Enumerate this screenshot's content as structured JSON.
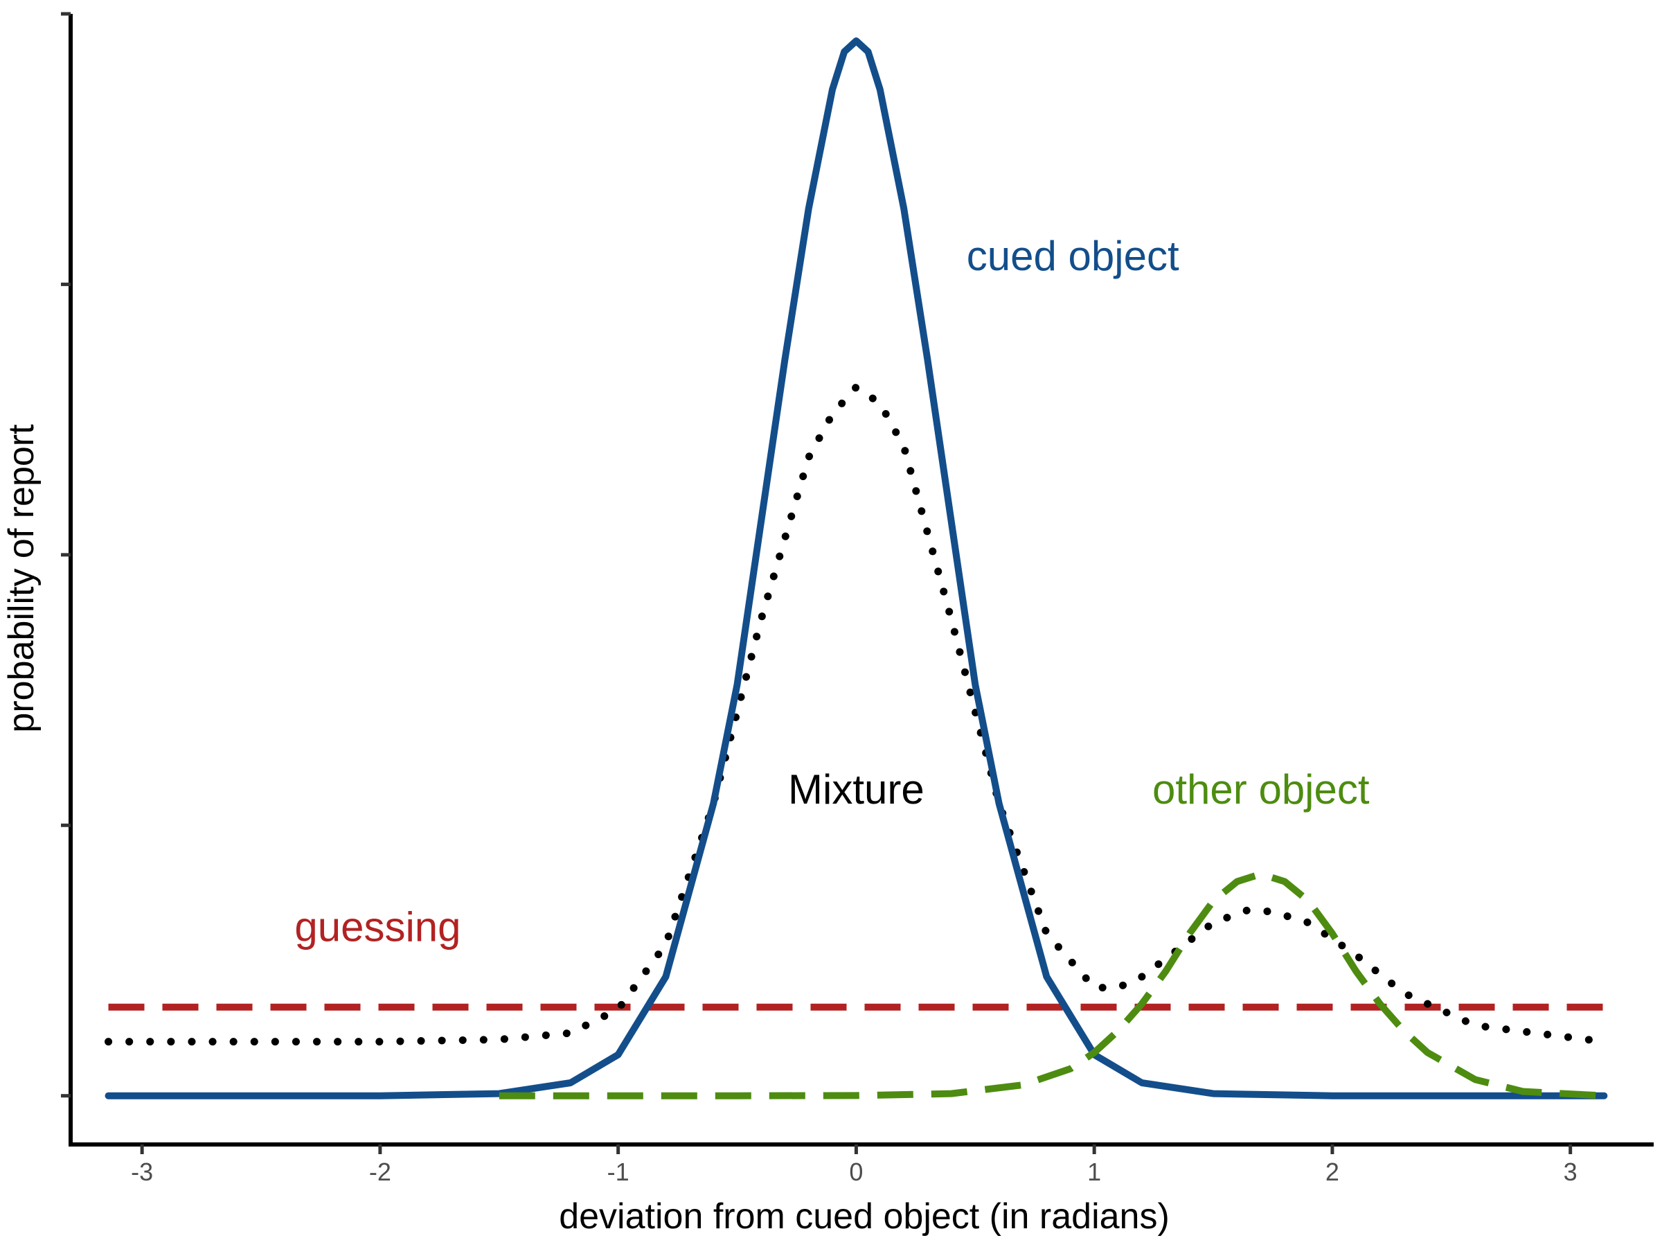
{
  "chart_data": {
    "type": "line",
    "title": "",
    "xlabel": "deviation from cued object (in radians)",
    "ylabel": "probability of report",
    "xlim": [
      -3.3,
      3.35
    ],
    "ylim": [
      -0.045,
      1.0
    ],
    "x_ticks": [
      -3,
      -2,
      -1,
      0,
      1,
      2,
      3
    ],
    "x_tick_labels": [
      "-3",
      "-2",
      "-1",
      "0",
      "1",
      "2",
      "3"
    ],
    "y_ticks": [
      0,
      0.25,
      0.5,
      0.75,
      1.0
    ],
    "y_tick_labels_shown": false,
    "grid": false,
    "legend": "none",
    "series": [
      {
        "name": "guessing",
        "style": "dashed",
        "color": "#B22222",
        "x": [
          -3.1416,
          3.1416
        ],
        "y": [
          0.082,
          0.082
        ]
      },
      {
        "name": "Mixture",
        "style": "dotted",
        "color": "#000000",
        "x": [
          -3.1416,
          -2.5,
          -2.0,
          -1.5,
          -1.2,
          -1.0,
          -0.8,
          -0.6,
          -0.4,
          -0.2,
          -0.1,
          0.0,
          0.1,
          0.2,
          0.4,
          0.6,
          0.8,
          1.0,
          1.1,
          1.2,
          1.35,
          1.5,
          1.65,
          1.75,
          1.9,
          2.1,
          2.3,
          2.6,
          3.1416
        ],
        "y": [
          0.05,
          0.05,
          0.05,
          0.052,
          0.058,
          0.08,
          0.14,
          0.27,
          0.44,
          0.59,
          0.63,
          0.655,
          0.64,
          0.6,
          0.44,
          0.27,
          0.15,
          0.1,
          0.1,
          0.11,
          0.135,
          0.16,
          0.172,
          0.17,
          0.16,
          0.13,
          0.095,
          0.065,
          0.05
        ]
      },
      {
        "name": "cued object",
        "style": "solid",
        "color": "#134E8B",
        "x": [
          -3.1416,
          -2.0,
          -1.5,
          -1.2,
          -1.0,
          -0.8,
          -0.6,
          -0.5,
          -0.4,
          -0.3,
          -0.2,
          -0.1,
          -0.05,
          0.0,
          0.05,
          0.1,
          0.2,
          0.3,
          0.4,
          0.5,
          0.6,
          0.8,
          1.0,
          1.2,
          1.5,
          2.0,
          3.1416
        ],
        "y": [
          0.0,
          0.0,
          0.002,
          0.012,
          0.038,
          0.11,
          0.27,
          0.38,
          0.53,
          0.68,
          0.82,
          0.93,
          0.965,
          0.975,
          0.965,
          0.93,
          0.82,
          0.68,
          0.53,
          0.38,
          0.27,
          0.11,
          0.038,
          0.012,
          0.002,
          0.0,
          0.0
        ]
      },
      {
        "name": "other object",
        "style": "dashed",
        "color": "#4D8C10",
        "x": [
          -1.5,
          -1.0,
          -0.5,
          0.0,
          0.4,
          0.7,
          0.9,
          1.0,
          1.1,
          1.2,
          1.3,
          1.4,
          1.5,
          1.6,
          1.7,
          1.8,
          1.9,
          2.0,
          2.1,
          2.2,
          2.3,
          2.4,
          2.6,
          2.8,
          3.1416
        ],
        "y": [
          0.0,
          0.0,
          0.0,
          0.0002,
          0.002,
          0.01,
          0.025,
          0.04,
          0.06,
          0.085,
          0.115,
          0.15,
          0.18,
          0.198,
          0.205,
          0.198,
          0.18,
          0.15,
          0.115,
          0.085,
          0.06,
          0.04,
          0.015,
          0.004,
          0.0
        ]
      }
    ],
    "annotations": [
      {
        "text": "guessing",
        "x": -2.01,
        "y": 0.143,
        "color": "#B22222"
      },
      {
        "text": "cued object",
        "x": 0.91,
        "y": 0.763,
        "color": "#134E8B"
      },
      {
        "text": "Mixture",
        "x": 0.0,
        "y": 0.27,
        "color": "#000000"
      },
      {
        "text": "other object",
        "x": 1.7,
        "y": 0.27,
        "color": "#4D8C10"
      }
    ]
  }
}
